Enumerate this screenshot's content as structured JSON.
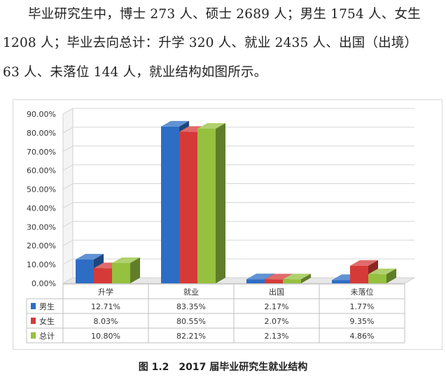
{
  "intro": {
    "lines": [
      "毕业研究生中，博士 273 人、硕士 2689 人；男生 1754 人、女生",
      "1208 人；毕业去向总计：升学 320 人、就业 2435 人、出国（出境）",
      "63 人、未落位 144 人，就业结构如图所示。"
    ]
  },
  "caption": "图 1.2　2017 届毕业研究生就业结构",
  "colors": {
    "男生": "#2e6dc4",
    "女生": "#d63a38",
    "总计": "#95c13f"
  },
  "chart_data": {
    "type": "bar",
    "categories": [
      "升学",
      "就业",
      "出国",
      "未落位"
    ],
    "series": [
      {
        "name": "男生",
        "values": [
          12.71,
          83.35,
          2.17,
          1.77
        ],
        "labels": [
          "12.71%",
          "83.35%",
          "2.17%",
          "1.77%"
        ]
      },
      {
        "name": "女生",
        "values": [
          8.03,
          80.55,
          2.07,
          9.35
        ],
        "labels": [
          "8.03%",
          "80.55%",
          "2.07%",
          "9.35%"
        ]
      },
      {
        "name": "总计",
        "values": [
          10.8,
          82.21,
          2.13,
          4.86
        ],
        "labels": [
          "10.80%",
          "82.21%",
          "2.13%",
          "4.86%"
        ]
      }
    ],
    "ylim": [
      0,
      90
    ],
    "yticks": [
      "0.00%",
      "10.00%",
      "20.00%",
      "30.00%",
      "40.00%",
      "50.00%",
      "60.00%",
      "70.00%",
      "80.00%",
      "90.00%"
    ],
    "grid": true,
    "legend": "data-table"
  }
}
